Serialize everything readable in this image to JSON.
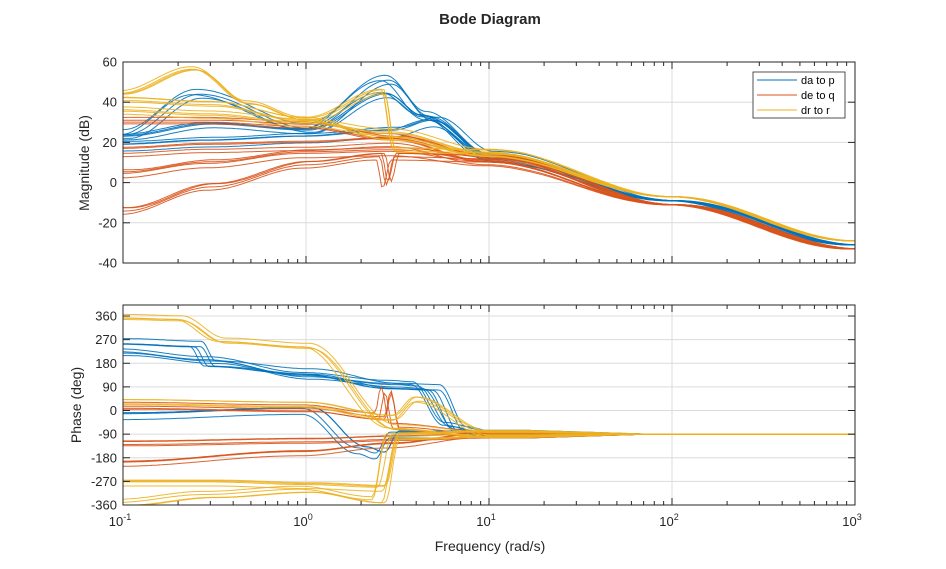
{
  "chart_data": {
    "type": "line",
    "title": "Bode Diagram",
    "xlabel": "Frequency (rad/s)",
    "xscale": "log",
    "xlim": [
      0.1,
      1000
    ],
    "x_ticks": [
      {
        "value": 0.1,
        "base": "10",
        "exp": "-1"
      },
      {
        "value": 1,
        "base": "10",
        "exp": "0"
      },
      {
        "value": 10,
        "base": "10",
        "exp": "1"
      },
      {
        "value": 100,
        "base": "10",
        "exp": "2"
      },
      {
        "value": 1000,
        "base": "10",
        "exp": "3"
      }
    ],
    "grid": true,
    "legend": {
      "location": "top-right",
      "entries": [
        "da to p",
        "de to q",
        "dr to r"
      ]
    },
    "colors": {
      "da to p": "#0072BD",
      "de to q": "#D95319",
      "dr to r": "#EDB120"
    },
    "panels": [
      {
        "name": "magnitude",
        "ylabel": "Magnitude (dB)",
        "ylim": [
          -40,
          60
        ],
        "yticks": [
          "60",
          "40",
          "20",
          "0",
          "-20",
          "-40"
        ],
        "ytick_values": [
          60,
          40,
          20,
          0,
          -20,
          -40
        ],
        "series": [
          {
            "name": "da to p",
            "x": [
              0.1,
              0.25,
              1,
              2.7,
              4.5,
              10,
              100,
              1000
            ],
            "y": [
              25,
              45,
              28,
              52,
              34,
              13,
              -9,
              -31
            ]
          },
          {
            "name": "da to p",
            "x": [
              0.1,
              0.3,
              1,
              2.7,
              4.3,
              10,
              100,
              1000
            ],
            "y": [
              22,
              28,
              25,
              43,
              32,
              13,
              -9,
              -31
            ]
          },
          {
            "name": "da to p",
            "x": [
              0.1,
              0.3,
              1,
              3,
              5,
              10,
              100,
              1000
            ],
            "y": [
              18,
              20,
              22,
              25,
              30,
              13,
              -9,
              -31
            ]
          },
          {
            "name": "de to q",
            "x": [
              0.1,
              0.3,
              1,
              2.5,
              2.7,
              3,
              10,
              100,
              1000
            ],
            "y": [
              -15,
              -3,
              8,
              12,
              -2,
              12,
              11,
              -11,
              -33
            ]
          },
          {
            "name": "de to q",
            "x": [
              0.1,
              0.3,
              1,
              3,
              10,
              100,
              1000
            ],
            "y": [
              15,
              17,
              18,
              20,
              11,
              -11,
              -33
            ]
          },
          {
            "name": "de to q",
            "x": [
              0.1,
              0.3,
              1,
              3,
              10,
              100,
              1000
            ],
            "y": [
              5,
              10,
              15,
              16,
              11,
              -11,
              -33
            ]
          },
          {
            "name": "de to q",
            "x": [
              0.1,
              0.3,
              1,
              3,
              10,
              100,
              1000
            ],
            "y": [
              30,
              30,
              28,
              22,
              11,
              -11,
              -33
            ]
          },
          {
            "name": "dr to r",
            "x": [
              0.1,
              0.25,
              0.5,
              1,
              3,
              10,
              100,
              1000
            ],
            "y": [
              45,
              57,
              40,
              32,
              22,
              14,
              -7,
              -29
            ]
          },
          {
            "name": "dr to r",
            "x": [
              0.1,
              0.3,
              1,
              2.6,
              3,
              10,
              100,
              1000
            ],
            "y": [
              40,
              38,
              30,
              44,
              15,
              14,
              -7,
              -29
            ]
          },
          {
            "name": "dr to r",
            "x": [
              0.1,
              0.3,
              1,
              3,
              10,
              100,
              1000
            ],
            "y": [
              35,
              33,
              29,
              24,
              14,
              -7,
              -29
            ]
          }
        ]
      },
      {
        "name": "phase",
        "ylabel": "Phase (deg)",
        "ylim": [
          -360,
          402
        ],
        "yticks": [
          "360",
          "270",
          "180",
          "90",
          "0",
          "-90",
          "-180",
          "-270",
          "-360"
        ],
        "ytick_values": [
          360,
          270,
          180,
          90,
          0,
          -90,
          -180,
          -270,
          -360
        ],
        "series": [
          {
            "name": "da to p",
            "x": [
              0.1,
              0.25,
              0.3,
              1,
              3,
              5,
              7,
              10,
              1000
            ],
            "y": [
              265,
              255,
              180,
              150,
              95,
              90,
              -70,
              -90,
              -90
            ]
          },
          {
            "name": "da to p",
            "x": [
              0.1,
              0.3,
              1,
              3,
              4,
              6,
              10,
              1000
            ],
            "y": [
              220,
              190,
              130,
              100,
              95,
              -60,
              -90,
              -90
            ]
          },
          {
            "name": "da to p",
            "x": [
              0.1,
              1,
              2,
              2.5,
              3,
              10,
              1000
            ],
            "y": [
              -20,
              0,
              -150,
              -170,
              -90,
              -90,
              -90
            ]
          },
          {
            "name": "de to q",
            "x": [
              0.1,
              1,
              3,
              10,
              1000
            ],
            "y": [
              -200,
              -160,
              -130,
              -90,
              -90
            ]
          },
          {
            "name": "de to q",
            "x": [
              0.1,
              1,
              2.5,
              2.7,
              3,
              10,
              1000
            ],
            "y": [
              20,
              10,
              -20,
              80,
              -60,
              -90,
              -90
            ]
          },
          {
            "name": "de to q",
            "x": [
              0.1,
              1,
              3,
              10,
              1000
            ],
            "y": [
              -120,
              -110,
              -100,
              -90,
              -90
            ]
          },
          {
            "name": "dr to r",
            "x": [
              0.1,
              0.2,
              0.35,
              1,
              3,
              10,
              1000
            ],
            "y": [
              360,
              355,
              270,
              250,
              -60,
              -90,
              -90
            ]
          },
          {
            "name": "dr to r",
            "x": [
              0.1,
              0.3,
              1,
              2.5,
              3,
              10,
              1000
            ],
            "y": [
              -350,
              -320,
              -300,
              -340,
              -100,
              -90,
              -90
            ]
          },
          {
            "name": "dr to r",
            "x": [
              0.1,
              0.3,
              1,
              2.5,
              3,
              10,
              1000
            ],
            "y": [
              -280,
              -280,
              -290,
              -300,
              -100,
              -90,
              -90
            ]
          },
          {
            "name": "dr to r",
            "x": [
              0.1,
              1,
              3,
              4,
              10,
              1000
            ],
            "y": [
              30,
              20,
              -30,
              40,
              -90,
              -90
            ]
          }
        ]
      }
    ]
  }
}
